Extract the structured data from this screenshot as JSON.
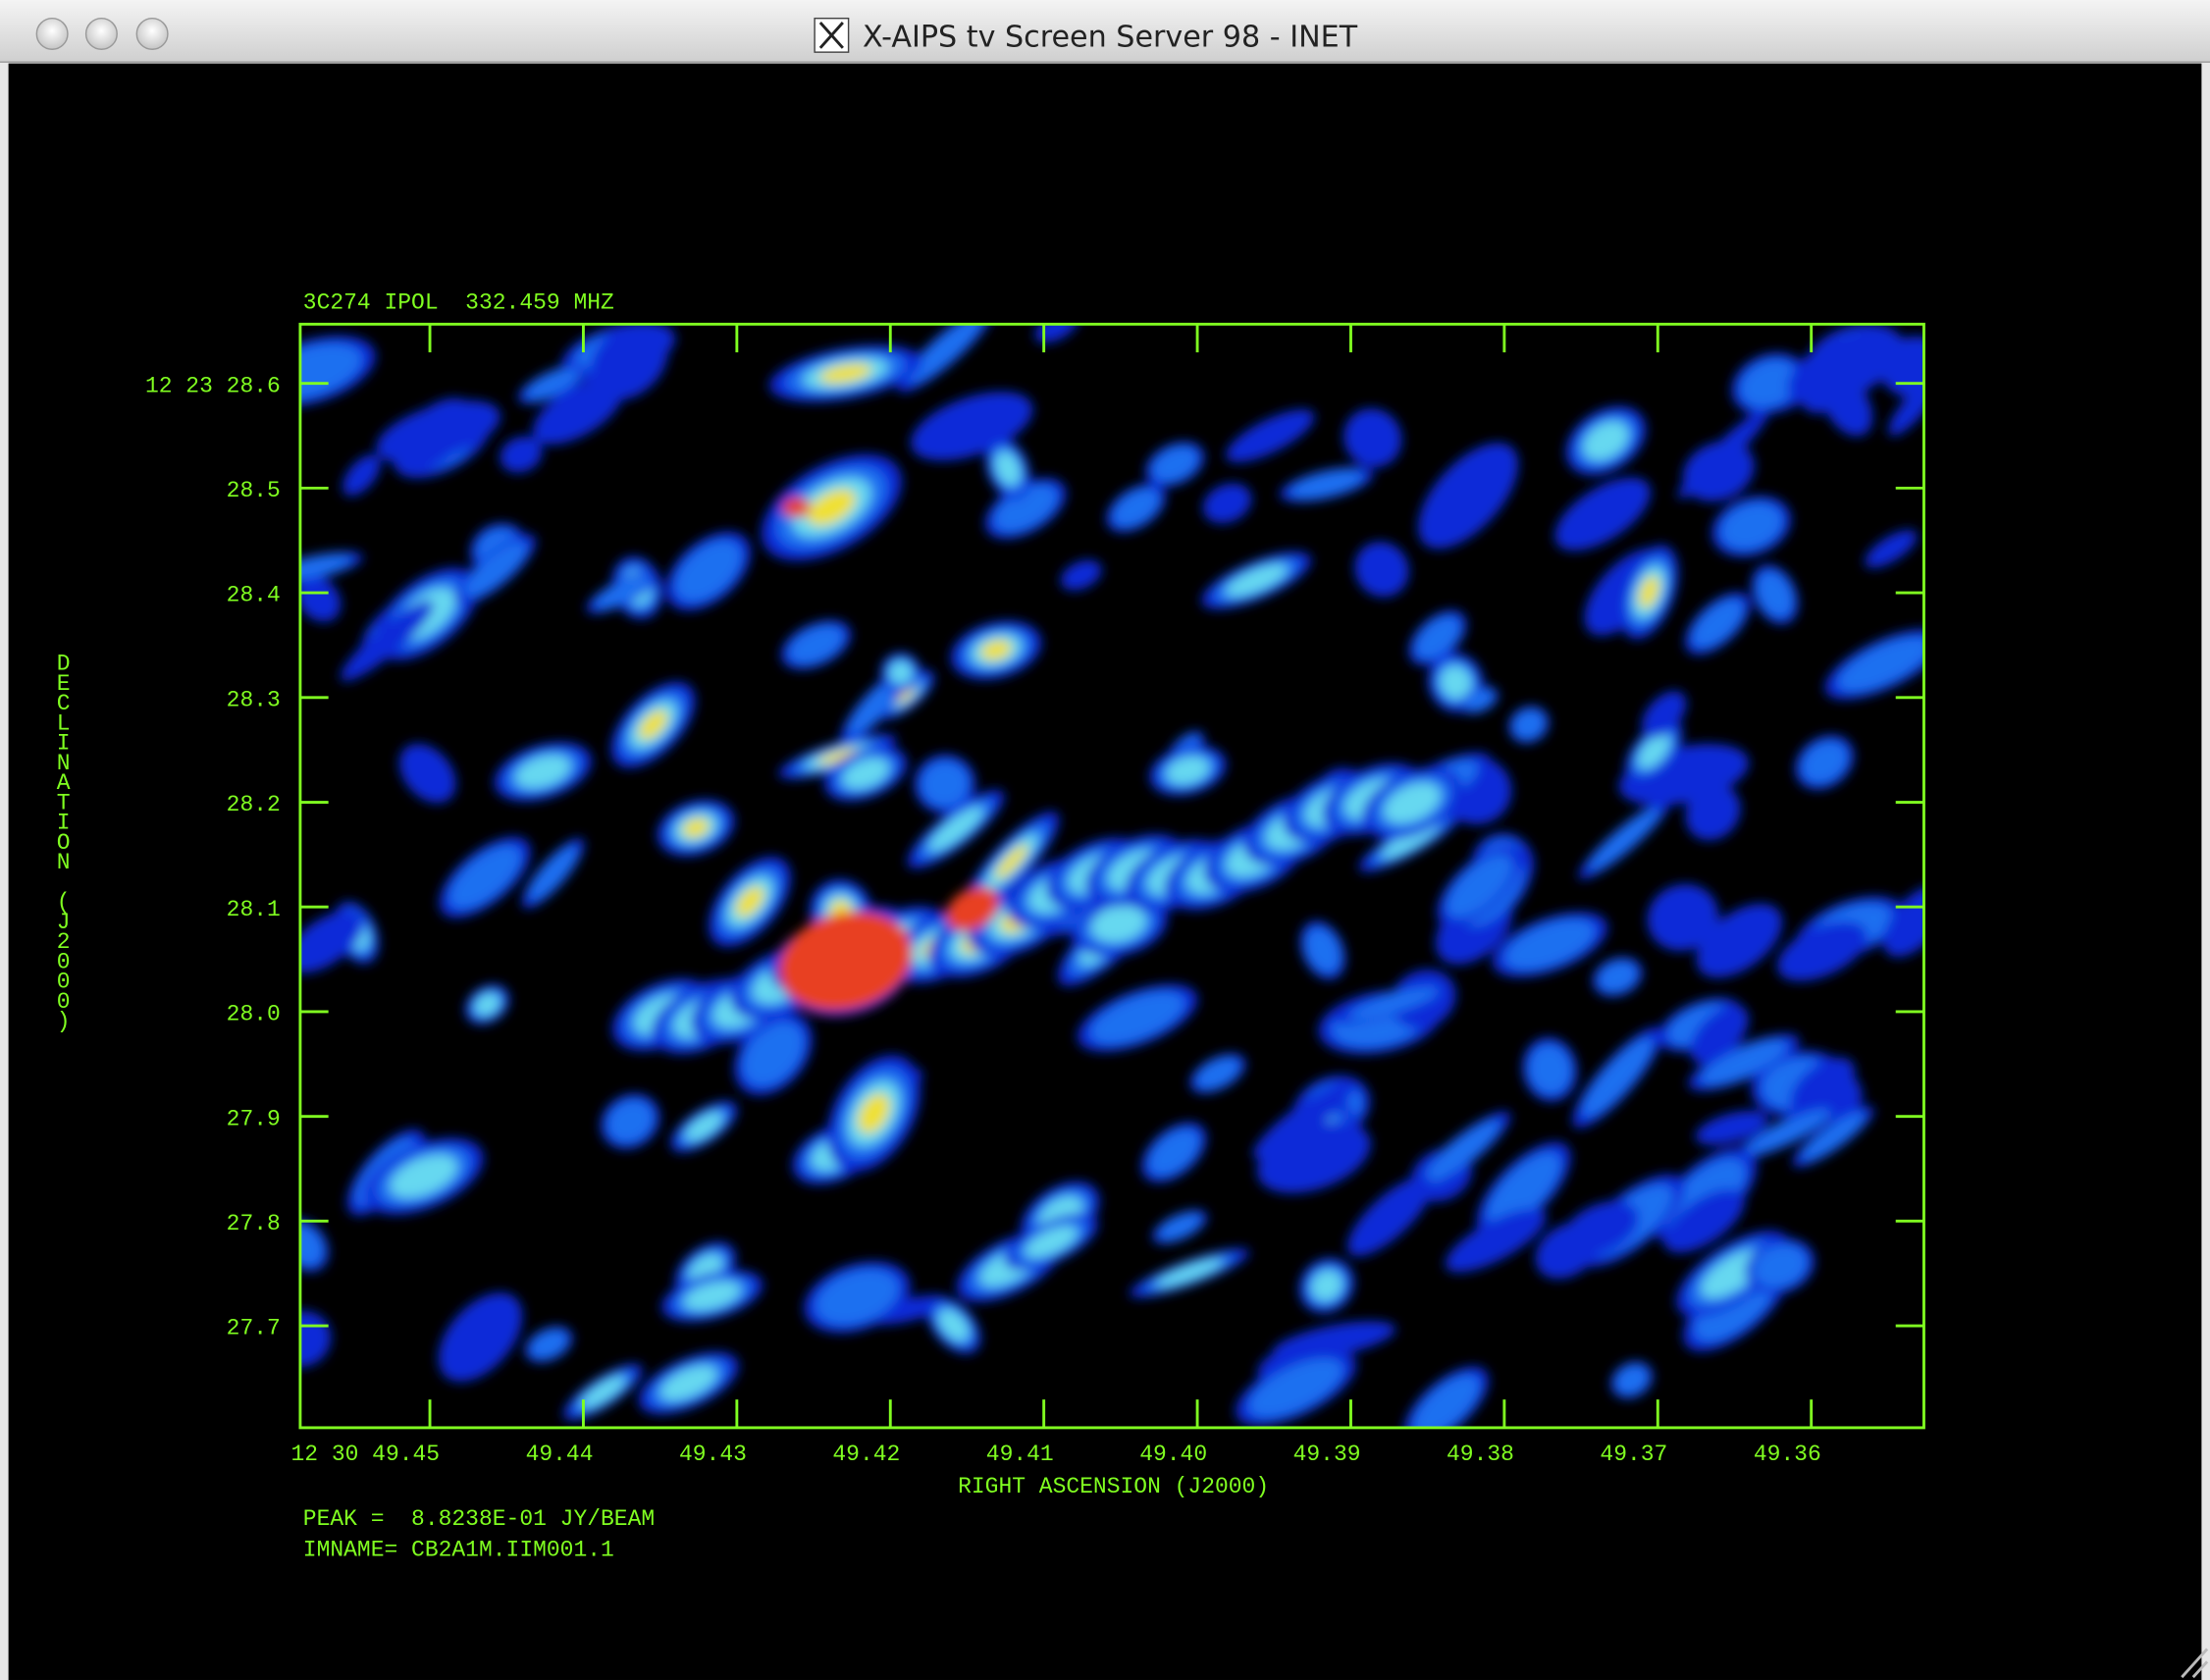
{
  "window": {
    "title": "X-AIPS tv Screen Server 98 - INET"
  },
  "plot": {
    "header": "3C274 IPOL  332.459 MHZ",
    "y_axis_label": "DECLINATION (J2000)",
    "x_axis_label": "RIGHT ASCENSION (J2000)",
    "y_tick_labels": [
      "12 23 28.6",
      "28.5",
      "28.4",
      "28.3",
      "28.2",
      "28.1",
      "28.0",
      "27.9",
      "27.8",
      "27.7"
    ],
    "x_tick_labels": [
      "12 30 49.45",
      "49.44",
      "49.43",
      "49.42",
      "49.41",
      "49.40",
      "49.39",
      "49.38",
      "49.37",
      "49.36"
    ],
    "peak": "PEAK =  8.8238E-01 JY/BEAM",
    "imname": "IMNAME= CB2A1M.IIM001.1"
  }
}
